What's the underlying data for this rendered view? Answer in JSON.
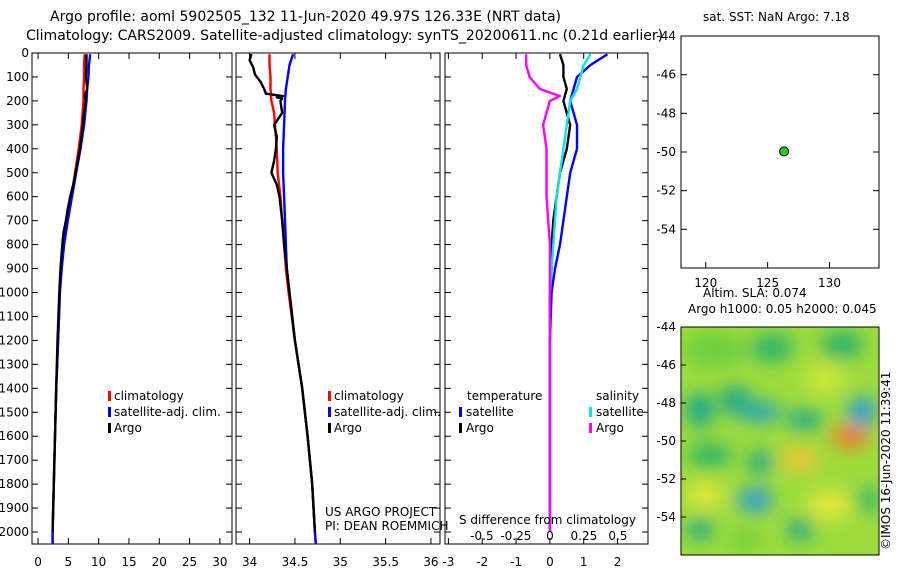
{
  "header": {
    "line1": "Argo profile: aoml 5902505_132 11-Jun-2020 49.97S 126.33E (NRT data)",
    "line2": "Climatology: CARS2009. Satellite-adjusted climatology: synTS_20200611.nc (0.21d earlier)"
  },
  "colors": {
    "climatology": "#ff0000",
    "satellite": "#0000ff",
    "argo": "#000000",
    "sat_salinity": "#00e5e5",
    "argo_salinity": "#ff00ff",
    "float_marker": "#22cc22"
  },
  "depth_axis": {
    "ylim": [
      0,
      2050
    ],
    "ticks": [
      "0",
      "100",
      "200",
      "300",
      "400",
      "500",
      "600",
      "700",
      "800",
      "900",
      "1000",
      "1100",
      "1200",
      "1300",
      "1400",
      "1500",
      "1600",
      "1700",
      "1800",
      "1900",
      "2000"
    ]
  },
  "chart_data": [
    {
      "id": "temperature",
      "type": "line",
      "xlim": [
        -1,
        32
      ],
      "ylim": [
        0,
        2050
      ],
      "xticks": [
        "0",
        "5",
        "10",
        "15",
        "20",
        "25",
        "30"
      ],
      "xlabel": "",
      "ylabel": "",
      "legend": {
        "position": "bottom-right",
        "items": [
          "climatology",
          "satellite-adj. clim.",
          "Argo"
        ]
      },
      "series": [
        {
          "name": "climatology",
          "color_key": "climatology",
          "depth": [
            5,
            50,
            100,
            150,
            200,
            300,
            400,
            500,
            600,
            700,
            800,
            900,
            1000,
            1200,
            1400,
            1600,
            1800,
            2000,
            2050
          ],
          "values": [
            7.7,
            7.6,
            7.6,
            7.5,
            7.5,
            7.2,
            6.7,
            6.1,
            5.5,
            4.7,
            4.1,
            3.8,
            3.6,
            3.3,
            3.0,
            2.8,
            2.6,
            2.4,
            2.4
          ]
        },
        {
          "name": "satellite-adj. clim.",
          "color_key": "satellite",
          "depth": [
            5,
            50,
            100,
            150,
            200,
            300,
            400,
            500,
            600,
            700,
            800,
            900,
            1000,
            1200,
            1400,
            1600,
            1800,
            2000,
            2050
          ],
          "values": [
            8.6,
            8.4,
            8.3,
            8.1,
            8.0,
            7.6,
            7.0,
            6.3,
            5.6,
            4.9,
            4.3,
            3.9,
            3.6,
            3.3,
            3.0,
            2.8,
            2.6,
            2.4,
            2.4
          ]
        },
        {
          "name": "Argo",
          "color_key": "argo",
          "depth": [
            5,
            50,
            100,
            150,
            180,
            200,
            250,
            300,
            400,
            500,
            550,
            600,
            650,
            700,
            750,
            800,
            900,
            1000,
            1200,
            1400,
            1600,
            1800,
            2000
          ],
          "values": [
            8.0,
            8.0,
            7.9,
            8.1,
            7.7,
            7.9,
            7.6,
            7.4,
            6.9,
            6.2,
            5.8,
            5.3,
            4.9,
            4.6,
            4.2,
            4.0,
            3.7,
            3.5,
            3.2,
            3.0,
            2.8,
            2.6,
            2.4
          ]
        }
      ]
    },
    {
      "id": "salinity",
      "type": "line",
      "xlim": [
        33.85,
        36.1
      ],
      "ylim": [
        0,
        2050
      ],
      "xticks": [
        "34",
        "34.5",
        "35",
        "35.5",
        "36"
      ],
      "xlabel": "",
      "ylabel": "",
      "legend": {
        "position": "bottom-right",
        "items": [
          "climatology",
          "satellite-adj. clim.",
          "Argo"
        ]
      },
      "series": [
        {
          "name": "climatology",
          "color_key": "climatology",
          "depth": [
            5,
            50,
            100,
            150,
            200,
            250,
            300,
            350,
            400,
            500,
            600,
            700,
            800,
            900,
            1000,
            1200,
            1400,
            1600,
            1800,
            2000,
            2050
          ],
          "values": [
            34.22,
            34.22,
            34.23,
            34.23,
            34.24,
            34.27,
            34.28,
            34.29,
            34.3,
            34.31,
            34.34,
            34.36,
            34.38,
            34.4,
            34.43,
            34.5,
            34.58,
            34.64,
            34.69,
            34.72,
            34.73
          ]
        },
        {
          "name": "satellite-adj. clim.",
          "color_key": "satellite",
          "depth": [
            5,
            50,
            100,
            150,
            200,
            300,
            400,
            500,
            600,
            700,
            800,
            900,
            1000,
            1200,
            1400,
            1600,
            1800,
            2000,
            2050
          ],
          "values": [
            34.48,
            34.44,
            34.42,
            34.4,
            34.39,
            34.38,
            34.37,
            34.37,
            34.38,
            34.39,
            34.4,
            34.41,
            34.44,
            34.5,
            34.58,
            34.64,
            34.69,
            34.72,
            34.73
          ]
        },
        {
          "name": "Argo",
          "color_key": "argo",
          "depth": [
            5,
            30,
            60,
            90,
            120,
            150,
            170,
            180,
            185,
            190,
            200,
            250,
            300,
            350,
            400,
            450,
            500,
            550,
            600,
            700,
            800,
            900,
            1000,
            1200,
            1400,
            1600,
            1800,
            2000
          ],
          "values": [
            34.02,
            34.0,
            34.04,
            34.06,
            34.12,
            34.16,
            34.18,
            34.37,
            34.3,
            34.36,
            34.34,
            34.36,
            34.27,
            34.3,
            34.29,
            34.27,
            34.24,
            34.3,
            34.33,
            34.36,
            34.38,
            34.41,
            34.44,
            34.5,
            34.58,
            34.64,
            34.69,
            34.72
          ]
        }
      ],
      "annotations": [
        "US ARGO PROJECT",
        "PI: DEAN ROEMMICH"
      ]
    },
    {
      "id": "difference",
      "type": "line",
      "xlim": [
        -3.1,
        2.9
      ],
      "ylim": [
        0,
        2050
      ],
      "xticks": [
        "-3",
        "-2",
        "-1",
        "0",
        "1",
        "2"
      ],
      "xticks_secondary": [
        "-0.5",
        "-0.25",
        "0",
        "0.25",
        "0.5"
      ],
      "xlabel": "S difference from climatology",
      "ylabel": "",
      "legend": {
        "position": "bottom",
        "groups": [
          "temperature",
          "salinity"
        ],
        "items": [
          "satellite",
          "Argo",
          "satellite",
          "Argo"
        ]
      },
      "series": [
        {
          "name": "temperature satellite",
          "color_key": "satellite",
          "depth": [
            5,
            50,
            100,
            150,
            200,
            300,
            400,
            500,
            600,
            700,
            800,
            900,
            1000,
            1200,
            1400,
            1600,
            1800,
            2000
          ],
          "values": [
            1.7,
            1.2,
            0.8,
            0.7,
            0.6,
            0.8,
            0.8,
            0.6,
            0.5,
            0.4,
            0.3,
            0.15,
            0.05,
            0.0,
            0.0,
            0.0,
            0.0,
            0.0
          ]
        },
        {
          "name": "temperature Argo",
          "color_key": "argo",
          "depth": [
            5,
            50,
            100,
            150,
            200,
            300,
            400,
            500,
            600,
            700,
            800,
            900,
            1000,
            1200,
            1400,
            1600,
            1800,
            2000
          ],
          "values": [
            0.3,
            0.4,
            0.4,
            0.5,
            0.4,
            0.6,
            0.5,
            0.3,
            0.2,
            0.1,
            0.05,
            0.05,
            0.0,
            0.0,
            0.0,
            0.0,
            0.0,
            0.0
          ]
        },
        {
          "name": "salinity satellite",
          "color_key": "sat_salinity",
          "depth": [
            5,
            50,
            100,
            150,
            200,
            300,
            400,
            500,
            600,
            700,
            800,
            900,
            1000,
            1200,
            1400,
            1600,
            1800,
            2000
          ],
          "values": [
            1.2,
            1.0,
            0.9,
            0.8,
            0.6,
            0.5,
            0.4,
            0.3,
            0.2,
            0.15,
            0.1,
            0.05,
            0.0,
            0.0,
            0.0,
            0.0,
            0.0,
            0.0
          ]
        },
        {
          "name": "salinity Argo",
          "color_key": "argo_salinity",
          "depth": [
            5,
            50,
            100,
            150,
            180,
            200,
            250,
            300,
            400,
            500,
            600,
            700,
            800,
            900,
            1000,
            1200,
            1400,
            1600,
            1800,
            2000
          ],
          "values": [
            -0.7,
            -0.7,
            -0.6,
            -0.3,
            0.3,
            0.0,
            -0.1,
            -0.2,
            -0.1,
            -0.1,
            -0.1,
            -0.05,
            0.0,
            0.0,
            0.0,
            0.0,
            0.0,
            0.0,
            0.0,
            0.0
          ]
        }
      ]
    },
    {
      "id": "location-map",
      "type": "scatter",
      "title": "sat. SST: NaN Argo: 7.18",
      "xlim": [
        118,
        134
      ],
      "ylim": [
        -56,
        -44
      ],
      "xticks": [
        "120",
        "125",
        "130"
      ],
      "yticks": [
        "-44",
        "-46",
        "-48",
        "-50",
        "-52",
        "-54"
      ],
      "points": [
        {
          "lon": 126.33,
          "lat": -49.97
        }
      ]
    },
    {
      "id": "altimetry-map",
      "type": "heatmap",
      "title": "Altim. SLA: 0.074",
      "subtitle": "Argo h1000: 0.05 h2000: 0.045",
      "ylim": [
        -56,
        -44
      ],
      "yticks": [
        "-44",
        "-46",
        "-48",
        "-50",
        "-52",
        "-54"
      ],
      "watermark": "©IMOS 16-Jun-2020 11:39:41"
    }
  ]
}
